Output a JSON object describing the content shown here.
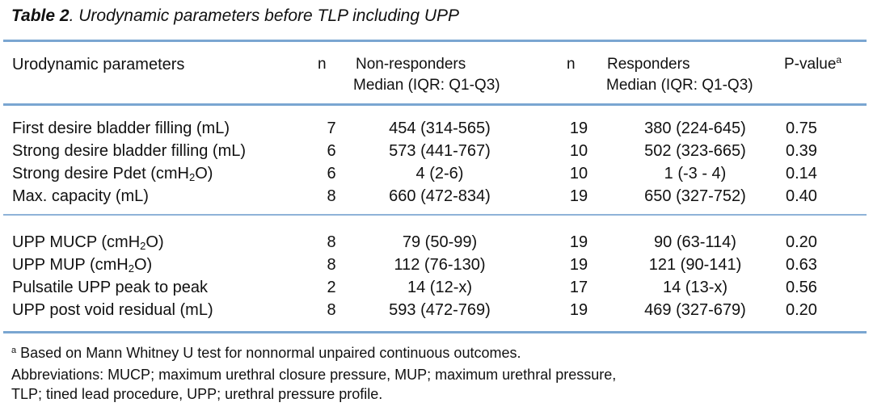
{
  "caption": {
    "label": "Table 2",
    "text": ". Urodynamic parameters before TLP including UPP"
  },
  "headers": {
    "param": "Urodynamic parameters",
    "n1": "n",
    "nonresp_line1": "Non-responders",
    "nonresp_line2": "Median (IQR: Q1-Q3)",
    "n2": "n",
    "resp_line1": "Responders",
    "resp_line2": "Median (IQR: Q1-Q3)",
    "pvalue": "P-value",
    "pvalue_sup": "a"
  },
  "rows": [
    {
      "param": "First desire bladder filling (mL)",
      "n1": "7",
      "nonresp": "454 (314-565)",
      "n2": "19",
      "resp": "380 (224-645)",
      "p": "0.75"
    },
    {
      "param": "Strong desire bladder filling (mL)",
      "n1": "6",
      "nonresp": "573 (441-767)",
      "n2": "10",
      "resp": "502 (323-665)",
      "p": "0.39"
    },
    {
      "param_pre": "Strong desire Pdet (cmH",
      "param_sub": "2",
      "param_post": "O)",
      "n1": "6",
      "nonresp": "4 (2-6)",
      "n2": "10",
      "resp": "1 (-3 - 4)",
      "p": "0.14"
    },
    {
      "param": "Max. capacity (mL)",
      "n1": "8",
      "nonresp": "660 (472-834)",
      "n2": "19",
      "resp": "650 (327-752)",
      "p": "0.40"
    },
    {
      "param_pre": "UPP MUCP (cmH",
      "param_sub": "2",
      "param_post": "O)",
      "n1": "8",
      "nonresp": "79 (50-99)",
      "n2": "19",
      "resp": "90 (63-114)",
      "p": "0.20"
    },
    {
      "param_pre": "UPP MUP (cmH",
      "param_sub": "2",
      "param_post": "O)",
      "n1": "8",
      "nonresp": "112 (76-130)",
      "n2": "19",
      "resp": "121 (90-141)",
      "p": "0.63"
    },
    {
      "param": "Pulsatile UPP peak to peak",
      "n1": "2",
      "nonresp": "14 (12-x)",
      "n2": "17",
      "resp": "14 (13-x)",
      "p": "0.56"
    },
    {
      "param": "UPP post void residual (mL)",
      "n1": "8",
      "nonresp": "593 (472-769)",
      "n2": "19",
      "resp": "469 (327-679)",
      "p": "0.20"
    }
  ],
  "footnotes": {
    "a_sup": "a",
    "a_text": " Based on Mann Whitney U test for nonnormal unpaired continuous outcomes.",
    "abbrev_line1": "Abbreviations: MUCP; maximum urethral closure pressure, MUP; maximum urethral pressure,",
    "abbrev_line2": "TLP; tined lead procedure, UPP; urethral pressure profile."
  }
}
